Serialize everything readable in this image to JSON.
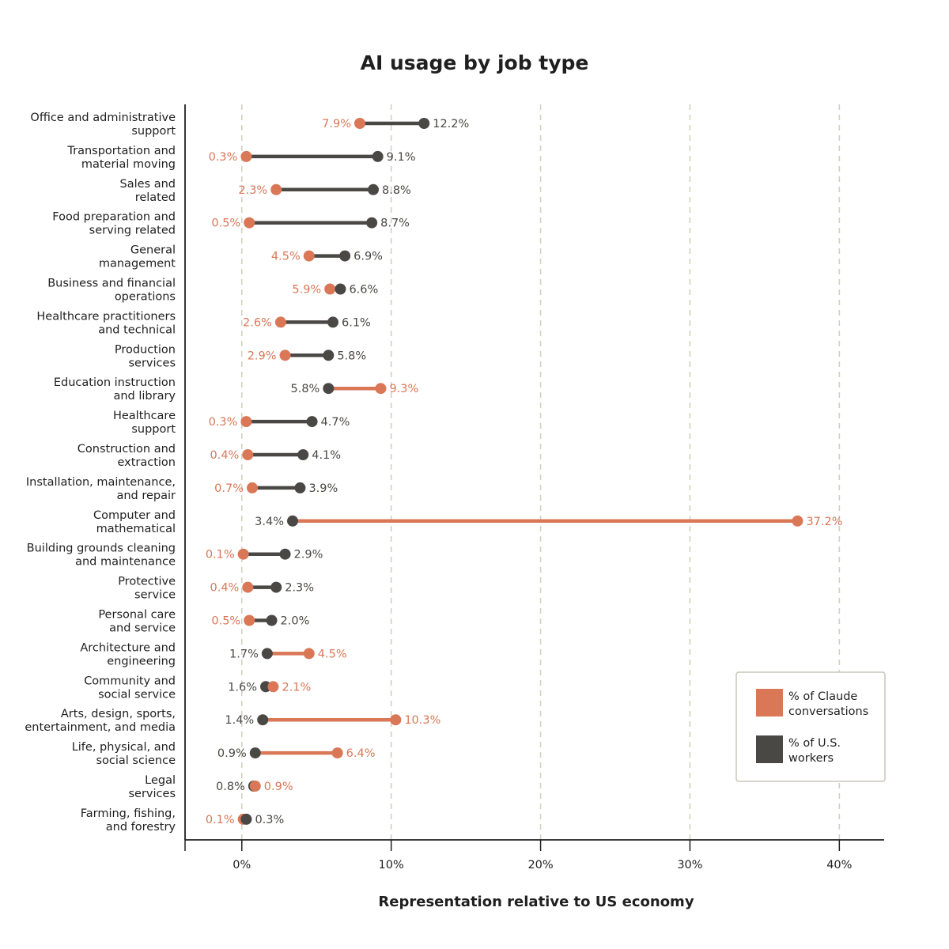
{
  "colors": {
    "claude": "#d97757",
    "workers": "#4a4844",
    "grid": "#d4cfc2",
    "axis": "#1f1f1f",
    "legend_border": "#c9c5bb"
  },
  "chart_data": {
    "type": "dumbbell",
    "title": "AI usage by job type",
    "xlabel": "Representation relative to US economy",
    "ylabel": "",
    "xlim": [
      -3.8,
      43
    ],
    "xticks": [
      0,
      10,
      20,
      30,
      40
    ],
    "xtick_labels": [
      "0%",
      "10%",
      "20%",
      "30%",
      "40%"
    ],
    "grid": "vertical dashed",
    "legend_position": "bottom-right",
    "series": [
      {
        "name": "% of Claude conversations",
        "key": "claude"
      },
      {
        "name": "% of U.S. workers",
        "key": "workers"
      }
    ],
    "categories": [
      {
        "label_lines": [
          "Office and administrative",
          "support"
        ],
        "claude": 7.9,
        "workers": 12.2,
        "claude_label": "7.9%",
        "workers_label": "12.2%"
      },
      {
        "label_lines": [
          "Transportation and",
          "material moving"
        ],
        "claude": 0.3,
        "workers": 9.1,
        "claude_label": "0.3%",
        "workers_label": "9.1%"
      },
      {
        "label_lines": [
          "Sales and",
          "related"
        ],
        "claude": 2.3,
        "workers": 8.8,
        "claude_label": "2.3%",
        "workers_label": "8.8%"
      },
      {
        "label_lines": [
          "Food preparation and",
          "serving related"
        ],
        "claude": 0.5,
        "workers": 8.7,
        "claude_label": "0.5%",
        "workers_label": "8.7%"
      },
      {
        "label_lines": [
          "General",
          "management"
        ],
        "claude": 4.5,
        "workers": 6.9,
        "claude_label": "4.5%",
        "workers_label": "6.9%"
      },
      {
        "label_lines": [
          "Business and financial",
          "operations"
        ],
        "claude": 5.9,
        "workers": 6.6,
        "claude_label": "5.9%",
        "workers_label": "6.6%"
      },
      {
        "label_lines": [
          "Healthcare practitioners",
          "and technical"
        ],
        "claude": 2.6,
        "workers": 6.1,
        "claude_label": "2.6%",
        "workers_label": "6.1%"
      },
      {
        "label_lines": [
          "Production",
          "services"
        ],
        "claude": 2.9,
        "workers": 5.8,
        "claude_label": "2.9%",
        "workers_label": "5.8%"
      },
      {
        "label_lines": [
          "Education instruction",
          "and library"
        ],
        "claude": 9.3,
        "workers": 5.8,
        "claude_label": "9.3%",
        "workers_label": "5.8%"
      },
      {
        "label_lines": [
          "Healthcare",
          "support"
        ],
        "claude": 0.3,
        "workers": 4.7,
        "claude_label": "0.3%",
        "workers_label": "4.7%"
      },
      {
        "label_lines": [
          "Construction and",
          "extraction"
        ],
        "claude": 0.4,
        "workers": 4.1,
        "claude_label": "0.4%",
        "workers_label": "4.1%"
      },
      {
        "label_lines": [
          "Installation, maintenance,",
          "and repair"
        ],
        "claude": 0.7,
        "workers": 3.9,
        "claude_label": "0.7%",
        "workers_label": "3.9%"
      },
      {
        "label_lines": [
          "Computer and",
          "mathematical"
        ],
        "claude": 37.2,
        "workers": 3.4,
        "claude_label": "37.2%",
        "workers_label": "3.4%"
      },
      {
        "label_lines": [
          "Building grounds cleaning",
          "and maintenance"
        ],
        "claude": 0.1,
        "workers": 2.9,
        "claude_label": "0.1%",
        "workers_label": "2.9%"
      },
      {
        "label_lines": [
          "Protective",
          "service"
        ],
        "claude": 0.4,
        "workers": 2.3,
        "claude_label": "0.4%",
        "workers_label": "2.3%"
      },
      {
        "label_lines": [
          "Personal care",
          "and service"
        ],
        "claude": 0.5,
        "workers": 2.0,
        "claude_label": "0.5%",
        "workers_label": "2.0%"
      },
      {
        "label_lines": [
          "Architecture and",
          "engineering"
        ],
        "claude": 4.5,
        "workers": 1.7,
        "claude_label": "4.5%",
        "workers_label": "1.7%"
      },
      {
        "label_lines": [
          "Community and",
          "social service"
        ],
        "claude": 2.1,
        "workers": 1.6,
        "claude_label": "2.1%",
        "workers_label": "1.6%"
      },
      {
        "label_lines": [
          "Arts, design, sports,",
          "entertainment, and media"
        ],
        "claude": 10.3,
        "workers": 1.4,
        "claude_label": "10.3%",
        "workers_label": "1.4%"
      },
      {
        "label_lines": [
          "Life, physical, and",
          "social science"
        ],
        "claude": 6.4,
        "workers": 0.9,
        "claude_label": "6.4%",
        "workers_label": "0.9%"
      },
      {
        "label_lines": [
          "Legal",
          "services"
        ],
        "claude": 0.9,
        "workers": 0.8,
        "claude_label": "0.9%",
        "workers_label": "0.8%"
      },
      {
        "label_lines": [
          "Farming, fishing,",
          "and forestry"
        ],
        "claude": 0.1,
        "workers": 0.3,
        "claude_label": "0.1%",
        "workers_label": "0.3%"
      }
    ],
    "legend": {
      "items": [
        {
          "key": "claude",
          "lines": [
            "% of Claude",
            "conversations"
          ]
        },
        {
          "key": "workers",
          "lines": [
            "% of U.S.",
            "workers"
          ]
        }
      ]
    }
  }
}
